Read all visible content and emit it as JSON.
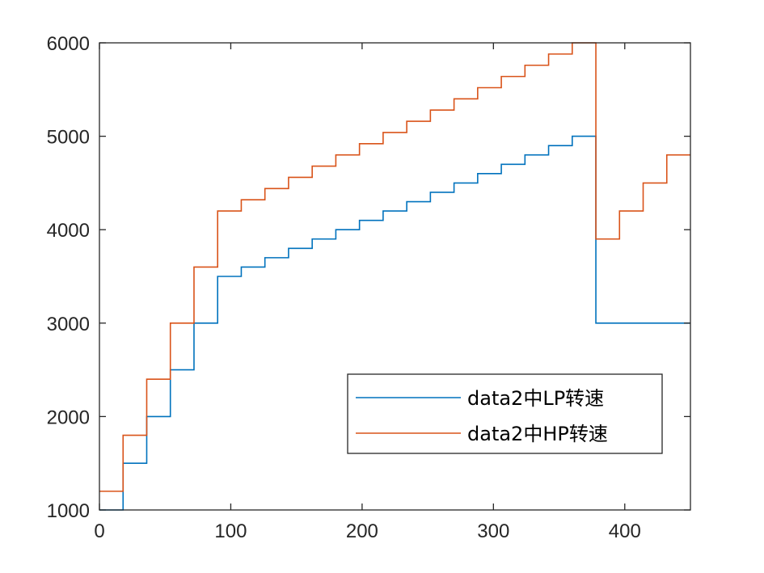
{
  "chart_data": {
    "type": "line",
    "title": "",
    "xlabel": "",
    "ylabel": "",
    "xlim": [
      0,
      450
    ],
    "ylim": [
      1000,
      6000
    ],
    "xticks": [
      0,
      100,
      200,
      300,
      400
    ],
    "yticks": [
      1000,
      2000,
      3000,
      4000,
      5000,
      6000
    ],
    "xtick_labels": [
      "0",
      "100",
      "200",
      "300",
      "400"
    ],
    "ytick_labels": [
      "1000",
      "2000",
      "3000",
      "4000",
      "5000",
      "6000"
    ],
    "grid": false,
    "legend_position": "bottom-right",
    "series": [
      {
        "name": "data2中LP转速",
        "color": "#0072BD",
        "x": [
          0,
          18,
          18,
          36,
          36,
          54,
          54,
          72,
          72,
          90,
          90,
          108,
          108,
          126,
          126,
          144,
          144,
          162,
          162,
          180,
          180,
          198,
          198,
          216,
          216,
          234,
          234,
          252,
          252,
          270,
          270,
          288,
          288,
          306,
          306,
          324,
          324,
          342,
          342,
          360,
          360,
          378,
          378,
          450
        ],
        "y": [
          1000,
          1000,
          1500,
          1500,
          2000,
          2000,
          2500,
          2500,
          3000,
          3000,
          3500,
          3500,
          3600,
          3600,
          3700,
          3700,
          3800,
          3800,
          3900,
          3900,
          4000,
          4000,
          4100,
          4100,
          4200,
          4200,
          4300,
          4300,
          4400,
          4400,
          4500,
          4500,
          4600,
          4600,
          4700,
          4700,
          4800,
          4800,
          4900,
          4900,
          5000,
          5000,
          3000,
          3000
        ]
      },
      {
        "name": "data2中HP转速",
        "color": "#D95319",
        "x": [
          0,
          18,
          18,
          36,
          36,
          54,
          54,
          72,
          72,
          90,
          90,
          108,
          108,
          126,
          126,
          144,
          144,
          162,
          162,
          180,
          180,
          198,
          198,
          216,
          216,
          234,
          234,
          252,
          252,
          270,
          270,
          288,
          288,
          306,
          306,
          324,
          324,
          342,
          342,
          360,
          360,
          378,
          378,
          396,
          396,
          414,
          414,
          432,
          432,
          450
        ],
        "y": [
          1200,
          1200,
          1800,
          1800,
          2400,
          2400,
          3000,
          3000,
          3600,
          3600,
          4200,
          4200,
          4320,
          4320,
          4440,
          4440,
          4560,
          4560,
          4680,
          4680,
          4800,
          4800,
          4920,
          4920,
          5040,
          5040,
          5160,
          5160,
          5280,
          5280,
          5400,
          5400,
          5520,
          5520,
          5640,
          5640,
          5760,
          5760,
          5880,
          5880,
          6000,
          6000,
          3900,
          3900,
          4200,
          4200,
          4500,
          4500,
          4800,
          4800
        ]
      }
    ]
  }
}
